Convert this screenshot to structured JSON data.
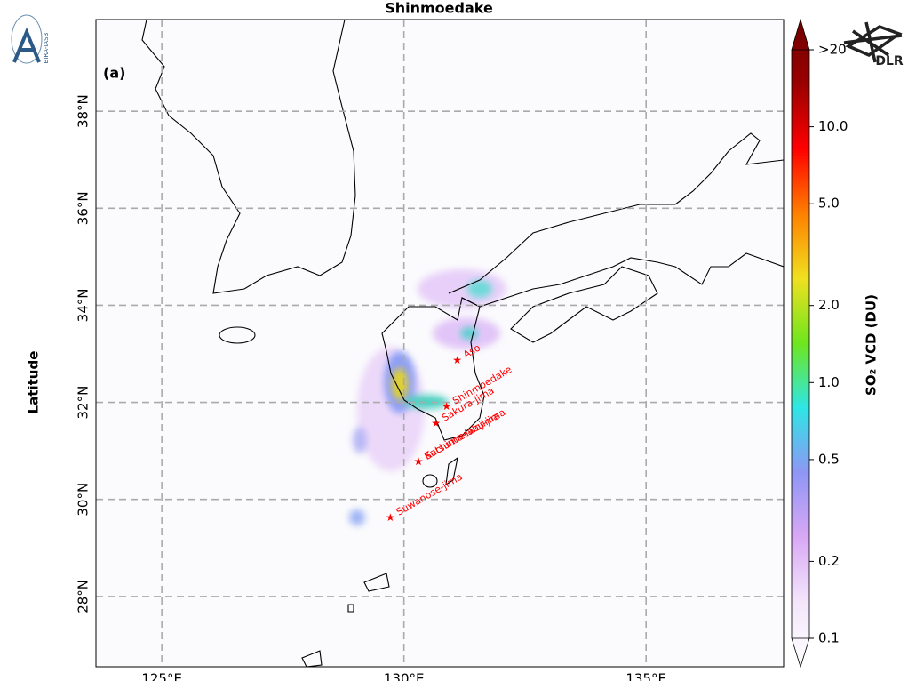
{
  "chart_data": {
    "type": "map",
    "title": "Shinmoedake",
    "panel_label": "(a)",
    "ylabel": "Latitude",
    "xlim": [
      123.64,
      137.84
    ],
    "ylim": [
      26.55,
      39.89
    ],
    "xticks": [
      {
        "value": 125,
        "label": "125°E"
      },
      {
        "value": 130,
        "label": "130°E"
      },
      {
        "value": 135,
        "label": "135°E"
      }
    ],
    "yticks": [
      {
        "value": 28,
        "label": "28°N"
      },
      {
        "value": 30,
        "label": "30°N"
      },
      {
        "value": 32,
        "label": "32°N"
      },
      {
        "value": 34,
        "label": "34°N"
      },
      {
        "value": 36,
        "label": "36°N"
      },
      {
        "value": 38,
        "label": "38°N"
      }
    ],
    "grid": true,
    "volcanoes": [
      {
        "name": "Aso",
        "lon": 131.1,
        "lat": 32.88
      },
      {
        "name": "Shinmoedake",
        "lon": 130.88,
        "lat": 31.93
      },
      {
        "name": "Sakura-jima",
        "lon": 130.66,
        "lat": 31.58
      },
      {
        "name": "Satsuma-Iwojima",
        "lon": 130.3,
        "lat": 30.79
      },
      {
        "name": "Kuchinoerabu-jima",
        "lon": 130.3,
        "lat": 30.79
      },
      {
        "name": "Suwanose-jima",
        "lon": 129.72,
        "lat": 29.64
      }
    ],
    "volcano_color": "#ff0000",
    "colorbar": {
      "label": "SO₂ VCD (DU)",
      "scale": "log",
      "lim": [
        0.1,
        20
      ],
      "ticks": [
        0.1,
        0.2,
        0.5,
        {
          "value": 1,
          "label": "1.0"
        },
        {
          "value": 2,
          "label": "2.0"
        },
        {
          "value": 5,
          "label": "5.0"
        },
        {
          "value": 10,
          "label": "10.0"
        },
        {
          "value": 20,
          "label": ">20"
        }
      ],
      "colormap": [
        "#ffffff",
        "#f3e6fb",
        "#d9a8f5",
        "#8f96f5",
        "#2ee6e6",
        "#6ee61e",
        "#f0e020",
        "#ff8000",
        "#ff0000",
        "#9a0000",
        "#700000"
      ]
    },
    "logos": {
      "left": "BIRA-IASB",
      "right": "DLR"
    }
  }
}
